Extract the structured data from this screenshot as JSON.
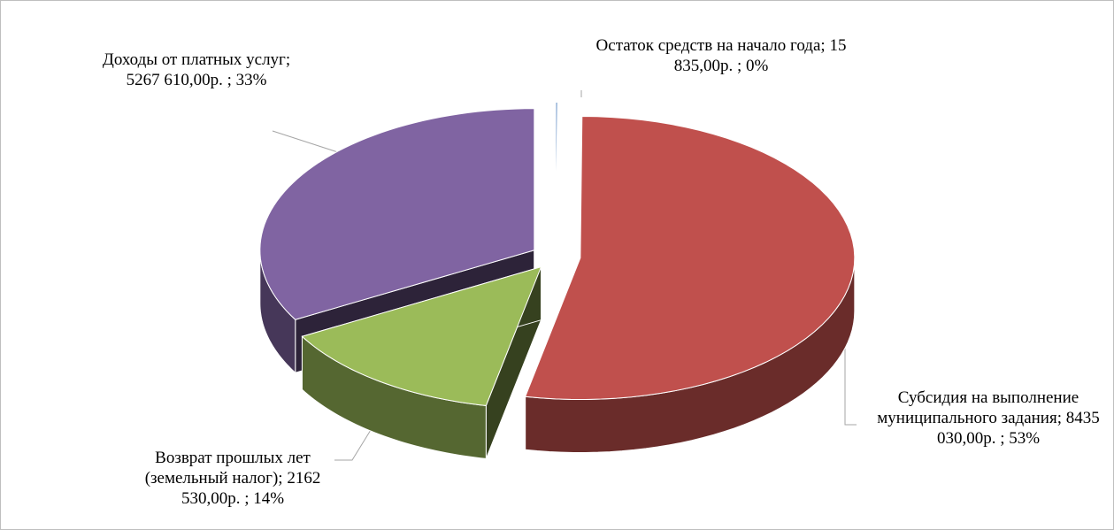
{
  "chart_data": {
    "type": "pie3d",
    "categories": [
      "Остаток средств на начало года;",
      "Субсидия на выполнение муниципального задания;",
      "Возврат прошлых лет (земельный налог);",
      "Доходы от платных услуг;"
    ],
    "values": [
      15835,
      8435030,
      2162530,
      5267610
    ],
    "value_labels": [
      "15 835,00р. ; 0%",
      "8435 030,00р. ; 53%",
      "2162 530,00р. ; 14%",
      "5267 610,00р. ; 33%"
    ],
    "colors": [
      "#4f81bd",
      "#c0504d",
      "#9bbb59",
      "#8064a2"
    ]
  }
}
